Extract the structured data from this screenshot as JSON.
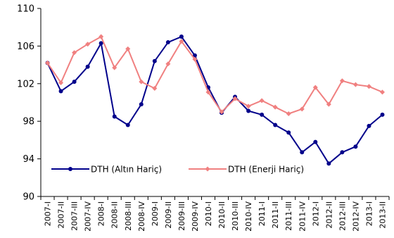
{
  "chart_data": {
    "type": "line",
    "title": "",
    "xlabel": "",
    "ylabel": "",
    "ylim": [
      90,
      110
    ],
    "yticks": [
      90,
      94,
      98,
      102,
      106,
      110
    ],
    "grid": false,
    "legend_position": "bottom-left",
    "categories": [
      "2007-I",
      "2007-II",
      "2007-III",
      "2007-IV",
      "2008-I",
      "2008-II",
      "2008-III",
      "2008-IV",
      "2009-I",
      "2009-II",
      "2009-III",
      "2009-IV",
      "2010-I",
      "2010-II",
      "2010-III",
      "2010-IV",
      "2011-I",
      "2011-II",
      "2011-III",
      "2011-IV",
      "2012-I",
      "2012-II",
      "2012-III",
      "2012-IV",
      "2013-I",
      "2013-II"
    ],
    "series": [
      {
        "name": "DTH (Altın Hariç)",
        "color": "#00008B",
        "marker": "circle",
        "values": [
          104.2,
          101.2,
          102.2,
          103.8,
          106.3,
          98.5,
          97.6,
          99.8,
          104.4,
          106.4,
          107.0,
          105.0,
          101.6,
          98.9,
          100.6,
          99.1,
          98.7,
          97.6,
          96.8,
          94.7,
          95.8,
          93.5,
          94.7,
          95.3,
          97.5,
          98.7
        ]
      },
      {
        "name": "DTH (Enerji Hariç)",
        "color": "#F08080",
        "marker": "diamond",
        "values": [
          104.2,
          102.1,
          105.3,
          106.2,
          107.0,
          103.7,
          105.7,
          102.2,
          101.5,
          104.1,
          106.5,
          104.6,
          101.1,
          99.0,
          100.4,
          99.6,
          100.2,
          99.5,
          98.8,
          99.3,
          101.6,
          99.8,
          102.3,
          101.9,
          101.7,
          101.1
        ]
      }
    ]
  }
}
